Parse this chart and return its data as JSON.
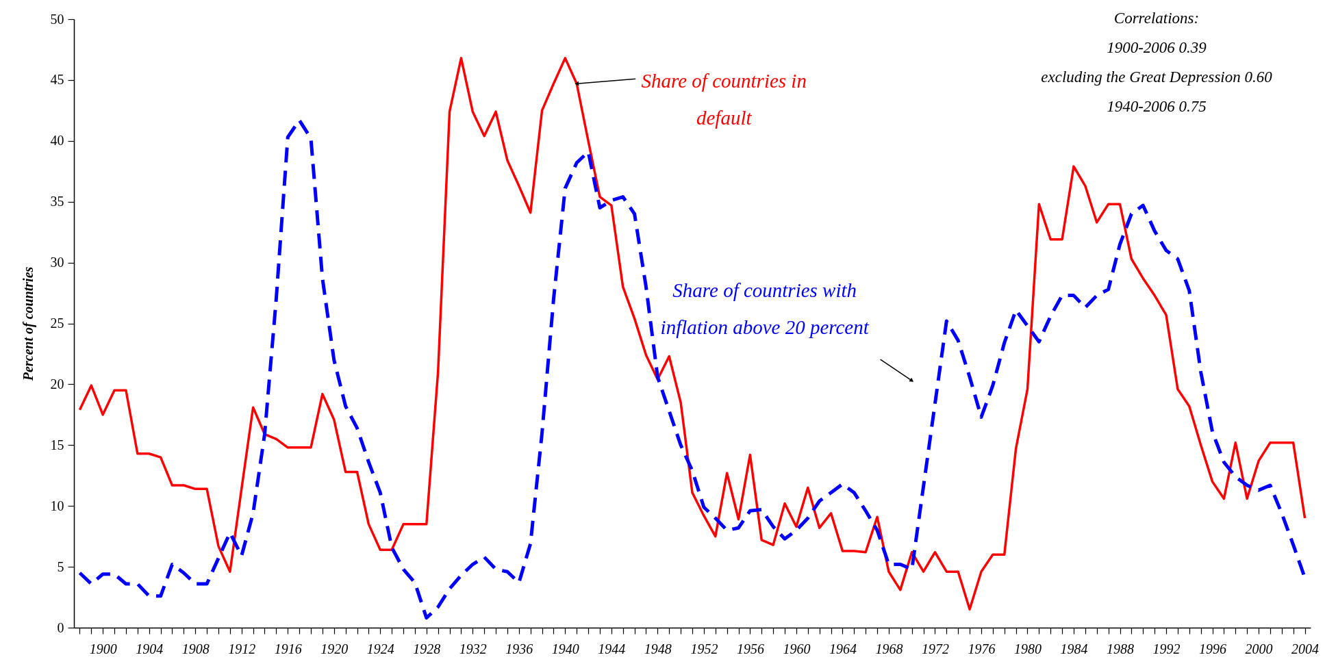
{
  "chart_data": {
    "type": "line",
    "ylabel": "Percent of countries",
    "x": [
      1898,
      1899,
      1900,
      1901,
      1902,
      1903,
      1904,
      1905,
      1906,
      1907,
      1908,
      1909,
      1910,
      1911,
      1912,
      1913,
      1914,
      1915,
      1916,
      1917,
      1918,
      1919,
      1920,
      1921,
      1922,
      1923,
      1924,
      1925,
      1926,
      1927,
      1928,
      1929,
      1930,
      1931,
      1932,
      1933,
      1934,
      1935,
      1936,
      1937,
      1938,
      1939,
      1940,
      1941,
      1942,
      1943,
      1944,
      1945,
      1946,
      1947,
      1948,
      1949,
      1950,
      1951,
      1952,
      1953,
      1954,
      1955,
      1956,
      1957,
      1958,
      1959,
      1960,
      1961,
      1962,
      1963,
      1964,
      1965,
      1966,
      1967,
      1968,
      1969,
      1970,
      1971,
      1972,
      1973,
      1974,
      1975,
      1976,
      1977,
      1978,
      1979,
      1980,
      1981,
      1982,
      1983,
      1984,
      1985,
      1986,
      1987,
      1988,
      1989,
      1990,
      1991,
      1992,
      1993,
      1994,
      1995,
      1996,
      1997,
      1998,
      1999,
      2000,
      2001,
      2002,
      2003,
      2004
    ],
    "series": [
      {
        "color": "#ff0000",
        "line_style": "solid",
        "values": [
          17.9,
          19.9,
          17.5,
          19.5,
          19.5,
          14.3,
          14.3,
          14.0,
          11.7,
          11.7,
          11.4,
          11.4,
          6.7,
          4.6,
          11.4,
          18.1,
          15.9,
          15.5,
          14.8,
          14.8,
          14.8,
          19.2,
          17.1,
          12.8,
          12.8,
          8.5,
          6.4,
          6.4,
          8.5,
          8.5,
          8.5,
          21.0,
          42.4,
          46.8,
          42.4,
          40.4,
          42.4,
          38.4,
          36.3,
          34.1,
          42.5,
          44.7,
          46.8,
          44.7,
          40.0,
          35.4,
          34.7,
          28.0,
          25.4,
          22.4,
          20.4,
          22.3,
          18.5,
          11.1,
          9.2,
          7.5,
          12.7,
          8.9,
          14.2,
          7.2,
          6.8,
          10.2,
          8.3,
          11.5,
          8.2,
          9.4,
          6.3,
          6.3,
          6.2,
          9.1,
          4.6,
          3.1,
          6.2,
          4.6,
          6.2,
          4.6,
          4.6,
          1.5,
          4.6,
          6.0,
          6.0,
          14.7,
          19.6,
          34.8,
          31.9,
          31.9,
          37.9,
          36.3,
          33.3,
          34.8,
          34.8,
          30.3,
          28.7,
          27.3,
          25.7,
          19.6,
          18.2,
          15.0,
          12.0,
          10.6,
          15.2,
          10.6,
          13.7,
          15.2,
          15.2,
          15.2,
          9.0
        ]
      },
      {
        "color": "#0000ff",
        "line_style": "dashed",
        "values": [
          4.5,
          3.6,
          4.4,
          4.4,
          3.6,
          3.6,
          2.6,
          2.6,
          5.2,
          4.5,
          3.6,
          3.6,
          5.7,
          7.8,
          5.9,
          9.4,
          15.9,
          27.0,
          40.3,
          41.7,
          40.2,
          28.7,
          22.0,
          18.2,
          16.4,
          13.6,
          11.1,
          6.6,
          4.8,
          3.7,
          0.8,
          1.7,
          3.2,
          4.3,
          5.2,
          5.8,
          4.8,
          4.6,
          3.7,
          6.9,
          16.0,
          27.0,
          36.1,
          38.2,
          39.1,
          34.5,
          35.1,
          35.4,
          34.0,
          28.0,
          20.6,
          17.8,
          15.0,
          12.9,
          9.9,
          9.0,
          8.0,
          8.2,
          9.6,
          9.7,
          8.3,
          7.3,
          8.0,
          9.0,
          10.4,
          11.1,
          11.8,
          11.1,
          9.6,
          8.0,
          5.2,
          5.2,
          4.8,
          11.6,
          18.4,
          25.2,
          23.6,
          20.6,
          17.3,
          19.9,
          23.4,
          26.1,
          24.8,
          23.5,
          25.6,
          27.3,
          27.3,
          26.3,
          27.3,
          27.8,
          31.5,
          34.0,
          34.7,
          32.6,
          31.0,
          30.3,
          27.7,
          21.0,
          16.1,
          13.6,
          12.4,
          11.7,
          11.3,
          11.7,
          9.4,
          6.8,
          4.1
        ]
      }
    ],
    "annotations": [
      {
        "text": "Share of countries in\ndefault",
        "x": 1941,
        "y": 44.7
      },
      {
        "text": "Share of countries with\ninflation above 20 percent",
        "x": 1970,
        "y": 20.3
      },
      "Correlations:\n1900-2006 0.39\nexcluding the Great Depression 0.60\n1940-2006  0.75"
    ],
    "xlim": [
      1897.5,
      2004.5
    ],
    "ylim": [
      0,
      50
    ],
    "yticks": [
      0,
      5,
      10,
      15,
      20,
      25,
      30,
      35,
      40,
      45,
      50
    ],
    "xticks": [
      {
        "value": 1898,
        "label": null
      },
      {
        "value": 1899,
        "label": null
      },
      1900,
      {
        "value": 1901,
        "label": null
      },
      {
        "value": 1902,
        "label": null
      },
      {
        "value": 1903,
        "label": null
      },
      1904,
      {
        "value": 1905,
        "label": null
      },
      {
        "value": 1906,
        "label": null
      },
      {
        "value": 1907,
        "label": null
      },
      1908,
      {
        "value": 1909,
        "label": null
      },
      {
        "value": 1910,
        "label": null
      },
      {
        "value": 1911,
        "label": null
      },
      1912,
      {
        "value": 1913,
        "label": null
      },
      {
        "value": 1914,
        "label": null
      },
      {
        "value": 1915,
        "label": null
      },
      1916,
      {
        "value": 1917,
        "label": null
      },
      {
        "value": 1918,
        "label": null
      },
      {
        "value": 1919,
        "label": null
      },
      1920,
      {
        "value": 1921,
        "label": null
      },
      {
        "value": 1922,
        "label": null
      },
      {
        "value": 1923,
        "label": null
      },
      1924,
      {
        "value": 1925,
        "label": null
      },
      {
        "value": 1926,
        "label": null
      },
      {
        "value": 1927,
        "label": null
      },
      1928,
      {
        "value": 1929,
        "label": null
      },
      {
        "value": 1930,
        "label": null
      },
      {
        "value": 1931,
        "label": null
      },
      1932,
      {
        "value": 1933,
        "label": null
      },
      {
        "value": 1934,
        "label": null
      },
      {
        "value": 1935,
        "label": null
      },
      1936,
      {
        "value": 1937,
        "label": null
      },
      {
        "value": 1938,
        "label": null
      },
      {
        "value": 1939,
        "label": null
      },
      1940,
      {
        "value": 1941,
        "label": null
      },
      {
        "value": 1942,
        "label": null
      },
      {
        "value": 1943,
        "label": null
      },
      1944,
      {
        "value": 1945,
        "label": null
      },
      {
        "value": 1946,
        "label": null
      },
      {
        "value": 1947,
        "label": null
      },
      1948,
      {
        "value": 1949,
        "label": null
      },
      {
        "value": 1950,
        "label": null
      },
      {
        "value": 1951,
        "label": null
      },
      1952,
      {
        "value": 1953,
        "label": null
      },
      {
        "value": 1954,
        "label": null
      },
      {
        "value": 1955,
        "label": null
      },
      1956,
      {
        "value": 1957,
        "label": null
      },
      {
        "value": 1958,
        "label": null
      },
      {
        "value": 1959,
        "label": null
      },
      1960,
      {
        "value": 1961,
        "label": null
      },
      {
        "value": 1962,
        "label": null
      },
      {
        "value": 1963,
        "label": null
      },
      1964,
      {
        "value": 1965,
        "label": null
      },
      {
        "value": 1966,
        "label": null
      },
      {
        "value": 1967,
        "label": null
      },
      1968,
      {
        "value": 1969,
        "label": null
      },
      {
        "value": 1970,
        "label": null
      },
      {
        "value": 1971,
        "label": null
      },
      1972,
      {
        "value": 1973,
        "label": null
      },
      {
        "value": 1974,
        "label": null
      },
      {
        "value": 1975,
        "label": null
      },
      1976,
      {
        "value": 1977,
        "label": null
      },
      {
        "value": 1978,
        "label": null
      },
      {
        "value": 1979,
        "label": null
      },
      1980,
      {
        "value": 1981,
        "label": null
      },
      {
        "value": 1982,
        "label": null
      },
      {
        "value": 1983,
        "label": null
      },
      1984,
      {
        "value": 1985,
        "label": null
      },
      {
        "value": 1986,
        "label": null
      },
      {
        "value": 1987,
        "label": null
      },
      1988,
      {
        "value": 1989,
        "label": null
      },
      {
        "value": 1990,
        "label": null
      },
      {
        "value": 1991,
        "label": null
      },
      1992,
      {
        "value": 1993,
        "label": null
      },
      {
        "value": 1994,
        "label": null
      },
      {
        "value": 1995,
        "label": null
      },
      1996,
      {
        "value": 1997,
        "label": null
      },
      {
        "value": 1998,
        "label": null
      },
      {
        "value": 1999,
        "label": null
      },
      2000,
      {
        "value": 2001,
        "label": null
      },
      {
        "value": 2002,
        "label": null
      },
      {
        "value": 2003,
        "label": null
      },
      2004
    ],
    "grid": false,
    "marker": "none"
  }
}
